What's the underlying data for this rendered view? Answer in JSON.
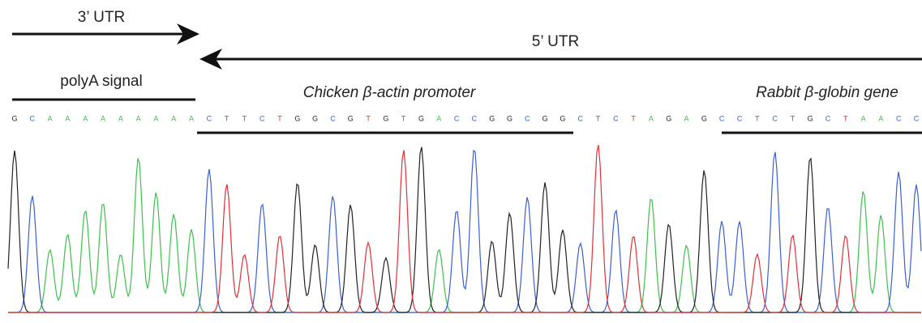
{
  "labels": {
    "utr3": "3’ UTR",
    "utr5": "5’ UTR",
    "polya": "polyA signal",
    "promoter": "Chicken β-actin promoter",
    "globin": "Rabbit β-globin gene"
  },
  "sequence": [
    "G",
    "C",
    "A",
    "A",
    "A",
    "A",
    "A",
    "A",
    "A",
    "A",
    "A",
    "C",
    "T",
    "T",
    "C",
    "T",
    "G",
    "G",
    "C",
    "G",
    "T",
    "G",
    "T",
    "G",
    "A",
    "C",
    "C",
    "G",
    "G",
    "C",
    "G",
    "G",
    "C",
    "T",
    "C",
    "T",
    "A",
    "G",
    "A",
    "G",
    "C",
    "C",
    "T",
    "C",
    "T",
    "G",
    "C",
    "T",
    "A",
    "A",
    "C",
    "C"
  ]
}
